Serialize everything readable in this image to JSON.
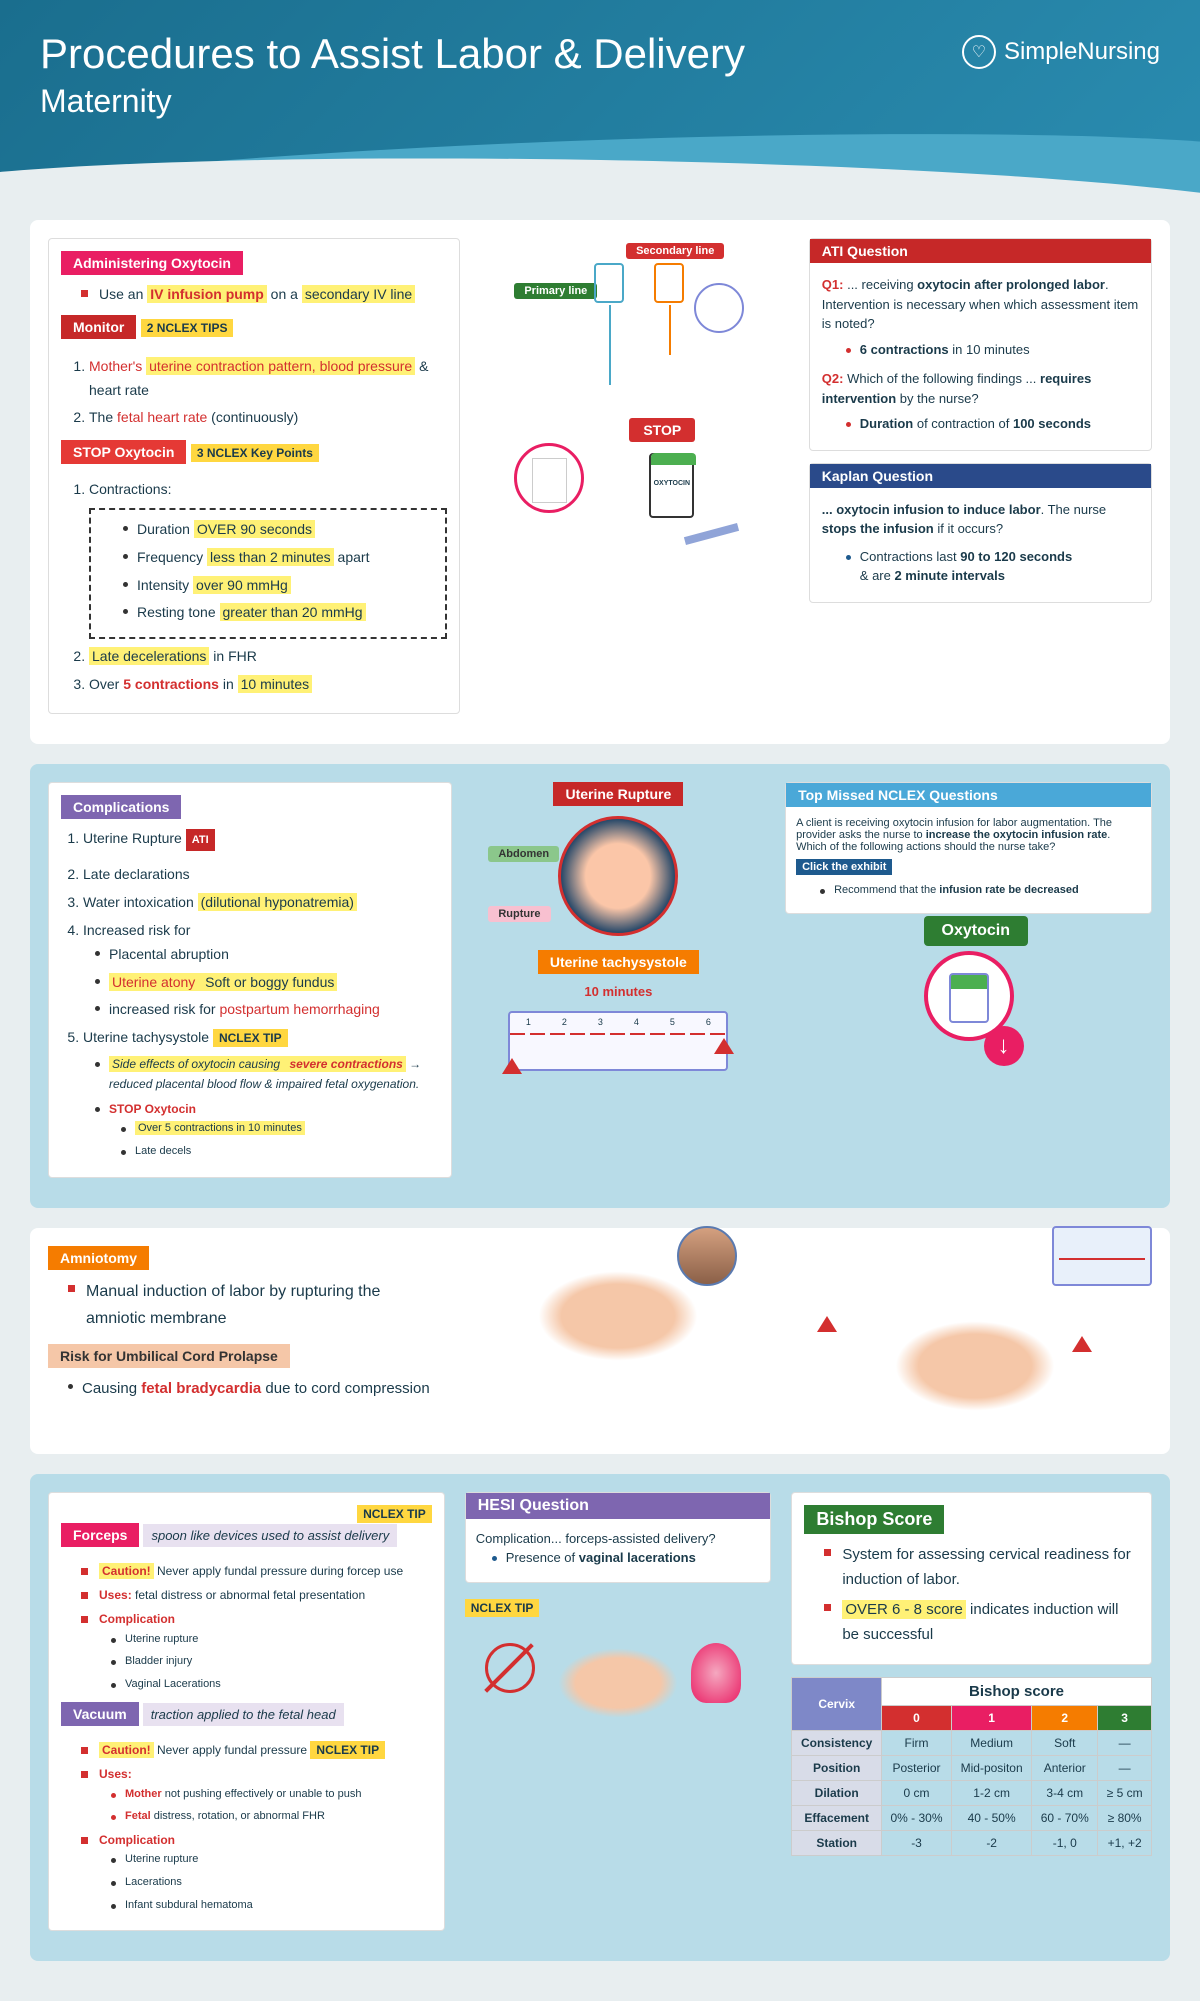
{
  "header": {
    "title": "Procedures to Assist Labor & Delivery",
    "subtitle": "Maternity",
    "brand": "SimpleNursing"
  },
  "oxytocin": {
    "title": "Administering Oxytocin",
    "intro_pre": "Use an ",
    "intro_hl1": "IV infusion pump",
    "intro_mid": " on a ",
    "intro_hl2": "secondary IV line",
    "monitor_label": "Monitor",
    "monitor_tips": "2 NCLEX TIPS",
    "mon1_a": "Mother's ",
    "mon1_b": "uterine contraction pattern, blood pressure",
    "mon1_c": " & heart rate",
    "mon2_a": "The ",
    "mon2_b": "fetal heart rate",
    "mon2_c": " (continuously)",
    "stop_label": "STOP Oxytocin",
    "stop_tips": "3 NCLEX Key Points",
    "stop1": "Contractions:",
    "c1_a": "Duration ",
    "c1_b": "OVER 90 seconds",
    "c2_a": "Frequency ",
    "c2_b": "less than 2 minutes",
    "c2_c": " apart",
    "c3_a": "Intensity ",
    "c3_b": "over 90 mmHg",
    "c4_a": "Resting tone ",
    "c4_b": "greater than 20 mmHg",
    "stop2_a": "Late decelerations",
    "stop2_b": " in FHR",
    "stop3_a": "Over ",
    "stop3_b": "5 contractions",
    "stop3_c": " in ",
    "stop3_d": "10 minutes"
  },
  "iv": {
    "primary": "Primary line",
    "secondary": "Secondary line",
    "stop": "STOP",
    "bottle": "OXYTOCIN"
  },
  "ati": {
    "title": "ATI Question",
    "q1_label": "Q1:",
    "q1_a": "... receiving ",
    "q1_b": "oxytocin after prolonged labor",
    "q1_c": ". Intervention is necessary when which assessment item is noted?",
    "q1_ans_a": "6 contractions",
    "q1_ans_b": " in 10 minutes",
    "q2_label": "Q2:",
    "q2_a": "Which of the following findings ... ",
    "q2_b": "requires intervention",
    "q2_c": " by the nurse?",
    "q2_ans_a": "Duration",
    "q2_ans_b": " of contraction of ",
    "q2_ans_c": "100 seconds"
  },
  "kaplan": {
    "title": "Kaplan Question",
    "q_a": "... oxytocin infusion to induce labor",
    "q_b": ". The nurse ",
    "q_c": "stops the infusion",
    "q_d": " if it occurs?",
    "ans_a": "Contractions last ",
    "ans_b": "90 to 120 seconds",
    "ans_c": " & are ",
    "ans_d": "2 minute intervals"
  },
  "complications": {
    "title": "Complications",
    "c1": "Uterine Rupture",
    "c1_tag": "ATI",
    "c2": "Late declarations",
    "c3_a": "Water intoxication ",
    "c3_b": "(dilutional hyponatremia)",
    "c4": "Increased risk for",
    "c4_1": "Placental abruption",
    "c4_2a": "Uterine atony",
    "c4_2b": " Soft or boggy fundus",
    "c4_3a": "increased risk for ",
    "c4_3b": "postpartum hemorrhaging",
    "c5": "Uterine tachysystole",
    "c5_tag": "NCLEX TIP",
    "c5_1a": "Side effects of oxytocin causing ",
    "c5_1b": "severe contractions",
    "c5_1c": " → reduced placental blood flow & impaired fetal oxygenation.",
    "c5_2": "STOP Oxytocin",
    "c5_2a": "Over 5 contractions in 10 minutes",
    "c5_2b": "Late decels"
  },
  "diag": {
    "rupture": "Uterine Rupture",
    "abdomen": "Abdomen",
    "rupture_lbl": "Rupture",
    "tachy": "Uterine tachysystole",
    "tenmin": "10 minutes"
  },
  "nclex": {
    "title_a": "Top Missed ",
    "title_b": "NCLEX Questions",
    "body_a": "A client is receiving oxytocin infusion for labor augmentation. The provider asks the nurse to ",
    "body_b": "increase the oxytocin infusion rate",
    "body_c": ". Which of the following actions should the nurse take?",
    "exhibit": "Click the exhibit",
    "ans_a": "Recommend that the ",
    "ans_b": "infusion rate be decreased",
    "oxy_label": "Oxytocin"
  },
  "amniotomy": {
    "title": "Amniotomy",
    "desc": "Manual induction of labor by rupturing the amniotic membrane",
    "risk": "Risk for Umbilical Cord Prolapse",
    "risk_a": "Causing ",
    "risk_b": "fetal bradycardia",
    "risk_c": " due to cord compression"
  },
  "forceps": {
    "tip": "NCLEX TIP",
    "title": "Forceps",
    "sub": "spoon like devices used to assist delivery",
    "caution": "Caution!",
    "caution_txt": " Never apply fundal pressure during forcep use",
    "uses": "Uses:",
    "uses_txt": " fetal distress or abnormal fetal presentation",
    "comp": "Complication",
    "comp1": "Uterine rupture",
    "comp2": "Bladder injury",
    "comp3": "Vaginal Lacerations"
  },
  "vacuum": {
    "title": "Vacuum",
    "sub": "traction applied to the fetal head",
    "caution": "Caution!",
    "caution_txt": " Never apply fundal pressure",
    "tip": "NCLEX TIP",
    "uses": "Uses:",
    "use1_a": "Mother",
    "use1_b": " not pushing effectively or unable to push",
    "use2_a": "Fetal",
    "use2_b": " distress, rotation, or abnormal FHR",
    "comp": "Complication",
    "comp1": "Uterine rupture",
    "comp2": "Lacerations",
    "comp3": "Infant subdural hematoma"
  },
  "hesi": {
    "title": "HESI Question",
    "q": "Complication... forceps-assisted delivery?",
    "ans_a": "Presence of ",
    "ans_b": "vaginal lacerations",
    "tip": "NCLEX TIP"
  },
  "bishop": {
    "title": "Bishop Score",
    "desc": "System for assessing cervical readiness for induction of labor.",
    "score_a": "OVER 6 - 8 score",
    "score_b": " indicates induction will be successful",
    "table_title": "Bishop score",
    "cervix": "Cervix",
    "cols": [
      "0",
      "1",
      "2",
      "3"
    ],
    "rows": [
      {
        "label": "Consistency",
        "cells": [
          "Firm",
          "Medium",
          "Soft",
          "—"
        ]
      },
      {
        "label": "Position",
        "cells": [
          "Posterior",
          "Mid-positon",
          "Anterior",
          "—"
        ]
      },
      {
        "label": "Dilation",
        "cells": [
          "0 cm",
          "1-2 cm",
          "3-4 cm",
          "≥ 5 cm"
        ]
      },
      {
        "label": "Effacement",
        "cells": [
          "0% - 30%",
          "40 - 50%",
          "60 - 70%",
          "≥ 80%"
        ]
      },
      {
        "label": "Station",
        "cells": [
          "-3",
          "-2",
          "-1, 0",
          "+1, +2"
        ]
      }
    ]
  }
}
